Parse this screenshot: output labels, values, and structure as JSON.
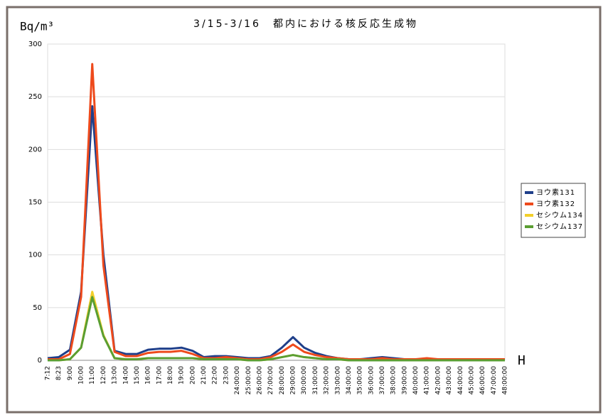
{
  "chart_data": {
    "type": "line",
    "title": "3/15-3/16　都内における核反応生成物",
    "y_label": "Bq/m³",
    "x_label": "H",
    "categories": [
      "7:12",
      "8:23",
      "9:00",
      "10:00",
      "11:00",
      "12:00",
      "13:00",
      "14:00",
      "15:00",
      "16:00",
      "17:00",
      "18:00",
      "19:00",
      "20:00",
      "21:00",
      "22:00",
      "23:00",
      "24:00:00",
      "25:00:00",
      "26:00:00",
      "27:00:00",
      "28:00:00",
      "29:00:00",
      "30:00:00",
      "31:00:00",
      "32:00:00",
      "33:00:00",
      "34:00:00",
      "35:00:00",
      "36:00:00",
      "37:00:00",
      "38:00:00",
      "39:00:00",
      "40:00:00",
      "41:00:00",
      "42:00:00",
      "43:00:00",
      "44:00:00",
      "45:00:00",
      "46:00:00",
      "47:00:00",
      "48:00:00"
    ],
    "series": [
      {
        "name": "ヨウ素131",
        "color": "#1f3f8a",
        "values": [
          2,
          3,
          10,
          65,
          241,
          100,
          9,
          6,
          6,
          10,
          11,
          11,
          12,
          9,
          3,
          4,
          4,
          3,
          2,
          2,
          4,
          12,
          22,
          12,
          7,
          4,
          2,
          1,
          1,
          2,
          3,
          2,
          1,
          1,
          1,
          1,
          1,
          1,
          1,
          1,
          1,
          1
        ]
      },
      {
        "name": "ヨウ素132",
        "color": "#ee4a1c",
        "values": [
          1,
          1,
          6,
          60,
          281,
          90,
          8,
          4,
          4,
          7,
          8,
          8,
          9,
          6,
          2,
          2,
          3,
          2,
          1,
          1,
          3,
          8,
          15,
          8,
          5,
          3,
          2,
          1,
          1,
          1,
          2,
          1,
          1,
          1,
          2,
          1,
          1,
          1,
          1,
          1,
          1,
          1
        ]
      },
      {
        "name": "セシウム134",
        "color": "#f2cf2a",
        "values": [
          0,
          0,
          1,
          12,
          65,
          24,
          2,
          1,
          1,
          2,
          2,
          2,
          2,
          2,
          1,
          1,
          1,
          1,
          0,
          0,
          1,
          3,
          5,
          3,
          2,
          1,
          1,
          0,
          0,
          0,
          0,
          0,
          0,
          0,
          0,
          0,
          0,
          0,
          0,
          0,
          0,
          0
        ]
      },
      {
        "name": "セシウム137",
        "color": "#5a9e32",
        "values": [
          0,
          0,
          1,
          12,
          60,
          23,
          2,
          1,
          1,
          2,
          2,
          2,
          2,
          2,
          1,
          1,
          1,
          1,
          0,
          0,
          1,
          3,
          5,
          3,
          2,
          1,
          1,
          0,
          0,
          0,
          0,
          0,
          0,
          0,
          0,
          0,
          0,
          0,
          0,
          0,
          0,
          0
        ]
      }
    ],
    "ylim": [
      0,
      300
    ],
    "yticks": [
      0,
      50,
      100,
      150,
      200,
      250,
      300
    ],
    "grid": true,
    "legend": "right"
  }
}
